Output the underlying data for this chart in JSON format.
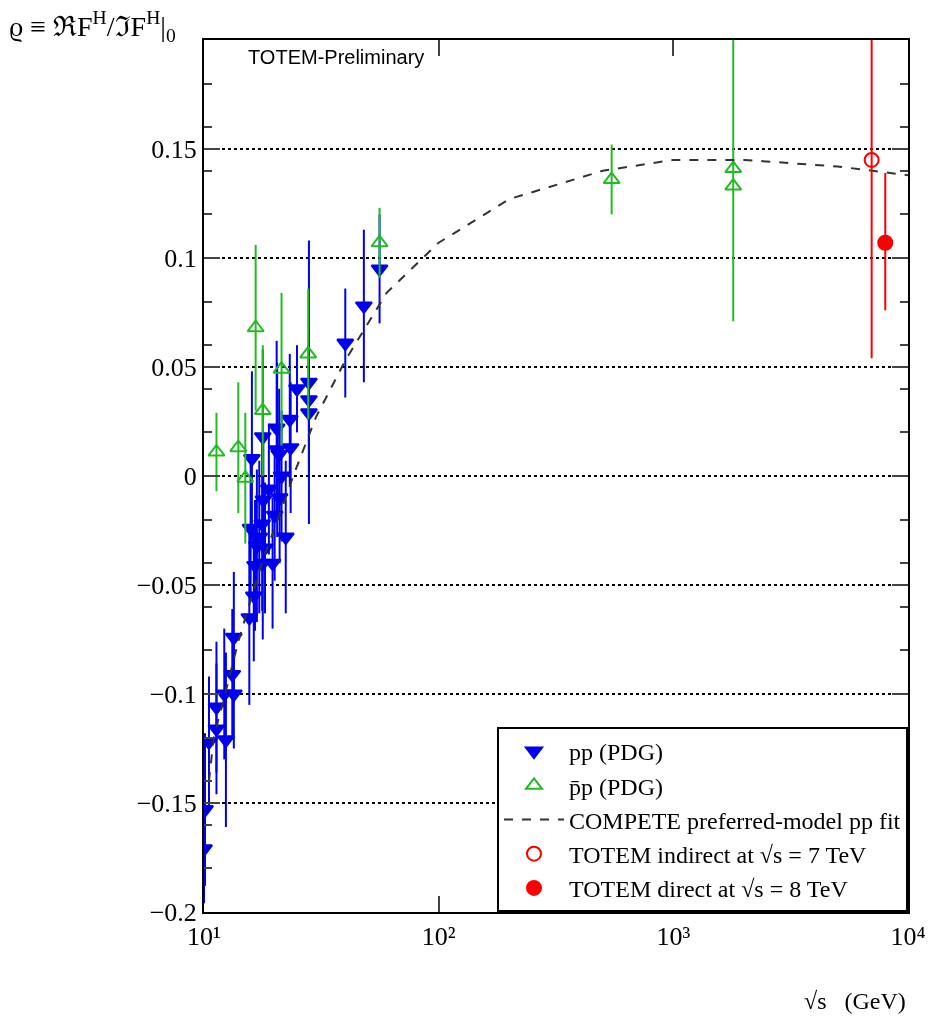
{
  "chart_data": {
    "type": "scatter",
    "ylabel": "ϱ ≡ ℜF$^{H}$/ℑF$^{H}$|$_{0}$",
    "xlabel": "√s   (GeV)",
    "annotations": [
      "TOTEM-Preliminary"
    ],
    "log": "x",
    "grid": "y",
    "legend": "bottom right",
    "xlim": [
      10,
      10000
    ],
    "ylim": [
      -0.2,
      0.2
    ],
    "xticks": [
      {
        "value": 10,
        "label": "10¹"
      },
      {
        "value": 100,
        "label": "10²"
      },
      {
        "value": 1000,
        "label": "10³"
      },
      {
        "value": 10000,
        "label": "10⁴"
      }
    ],
    "yticks": [
      {
        "value": -0.2,
        "label": "−0.2"
      },
      {
        "value": -0.15,
        "label": "−0.15"
      },
      {
        "value": -0.1,
        "label": "−0.1"
      },
      {
        "value": -0.05,
        "label": "−0.05"
      },
      0,
      0.05,
      0.1,
      0.15
    ],
    "series": [
      {
        "name": "pp (PDG)",
        "color": "#0000ee",
        "marker": "triangle-down",
        "x": [
          10.0,
          10.1,
          10.5,
          11.3,
          11.3,
          12.2,
          12.4,
          13.4,
          13.2,
          13.4,
          15.6,
          15.8,
          16.0,
          16.5,
          16.3,
          16.8,
          17.2,
          17.7,
          17.8,
          18.2,
          17.8,
          17.9,
          18.9,
          19.6,
          20.0,
          20.4,
          20.5,
          20.9,
          21.0,
          21.4,
          22.3,
          23.2,
          23.4,
          24.9,
          28.0,
          28.0,
          28.0,
          40.0,
          48.0,
          56.0
        ],
        "values": [
          -0.171,
          -0.153,
          -0.122,
          -0.106,
          -0.116,
          -0.1,
          -0.121,
          -0.1,
          -0.091,
          -0.074,
          -0.065,
          -0.024,
          0.008,
          -0.041,
          -0.055,
          -0.032,
          -0.028,
          -0.022,
          -0.04,
          -0.033,
          0.018,
          -0.011,
          -0.006,
          -0.04,
          -0.018,
          0.022,
          0.012,
          0.01,
          -0.01,
          0.0,
          -0.028,
          0.026,
          0.013,
          0.04,
          0.043,
          0.035,
          0.029,
          0.061,
          0.078,
          0.095
        ],
        "errors": [
          0.025,
          0.035,
          0.03,
          0.03,
          0.03,
          0.03,
          0.04,
          0.025,
          0.03,
          0.03,
          0.04,
          0.03,
          0.04,
          0.03,
          0.03,
          0.035,
          0.035,
          0.04,
          0.035,
          0.03,
          0.04,
          0.03,
          0.03,
          0.03,
          0.03,
          0.04,
          0.04,
          0.03,
          0.03,
          0.03,
          0.035,
          0.03,
          0.03,
          0.02,
          0.065,
          0.03,
          0.03,
          0.025,
          0.035,
          0.025
        ]
      },
      {
        "name": "p̄p (PDG)",
        "color": "#22bb22",
        "marker": "triangle-up-open",
        "x": [
          11.3,
          14.0,
          15.0,
          16.6,
          17.8,
          21.4,
          27.8,
          56.0,
          546,
          1800,
          1800
        ],
        "values": [
          0.011,
          0.013,
          -0.001,
          0.068,
          0.03,
          0.049,
          0.056,
          0.107,
          0.136,
          0.141,
          0.133
        ],
        "errors": [
          0.018,
          0.03,
          0.03,
          0.038,
          0.03,
          0.035,
          0.03,
          0.016,
          0.016,
          [
            0.071,
            0.2
          ],
          null
        ]
      },
      {
        "name": "COMPETE preferred-model pp fit",
        "type": "line",
        "line_style": "dashed",
        "color": "#333333",
        "marker": "none",
        "x": [
          10.5,
          11,
          12.5,
          14,
          16,
          18,
          20,
          24,
          30,
          40,
          60,
          100,
          200,
          500,
          1000,
          2000,
          5000,
          10000
        ],
        "values": [
          -0.14,
          -0.12,
          -0.097,
          -0.076,
          -0.055,
          -0.037,
          -0.024,
          0.0,
          0.027,
          0.053,
          0.084,
          0.107,
          0.127,
          0.14,
          0.145,
          0.145,
          0.142,
          0.138
        ]
      },
      {
        "name": "TOTEM indirect at √s = 7 TeV",
        "color": "#ff0000",
        "marker": "circle-open",
        "x": [
          7000
        ],
        "values": [
          0.145
        ],
        "errors": [
          [
            0.054,
            0.2
          ]
        ]
      },
      {
        "name": "TOTEM direct at √s = 8 TeV",
        "color": "#ff0000",
        "marker": "circle",
        "x": [
          8000
        ],
        "values": [
          0.107
        ],
        "errors": [
          [
            0.076,
            0.139
          ]
        ]
      }
    ]
  }
}
